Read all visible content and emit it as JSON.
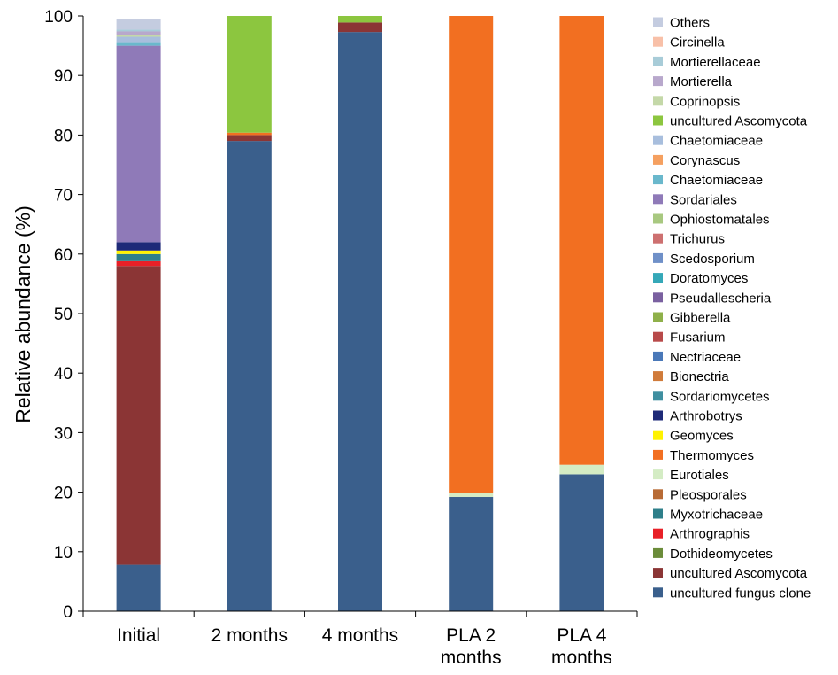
{
  "chart_data": {
    "type": "bar",
    "stacked": true,
    "ylabel": "Relative abundance (%)",
    "xlabel": "",
    "ylim": [
      0,
      100
    ],
    "yticks": [
      0,
      10,
      20,
      30,
      40,
      50,
      60,
      70,
      80,
      90,
      100
    ],
    "grid": false,
    "legend_position": "right",
    "categories": [
      [
        "Initial"
      ],
      [
        "2 months"
      ],
      [
        "4 months"
      ],
      [
        "PLA 2",
        "months"
      ],
      [
        "PLA 4",
        "months"
      ]
    ],
    "series": [
      {
        "name": "uncultured fungus clone",
        "color": "#3a5f8c",
        "values": [
          7.8,
          79.0,
          97.3,
          19.2,
          23.0
        ]
      },
      {
        "name": "uncultured Ascomycota",
        "color": "#8b3535",
        "values": [
          50.2,
          1.0,
          1.6,
          0,
          0
        ]
      },
      {
        "name": "Dothideomycetes",
        "color": "#6b8c3a",
        "values": [
          0,
          0,
          0,
          0,
          0
        ]
      },
      {
        "name": "Arthrographis",
        "color": "#e82027",
        "values": [
          0.8,
          0,
          0,
          0,
          0
        ]
      },
      {
        "name": "Myxotrichaceae",
        "color": "#2e7f8a",
        "values": [
          1.2,
          0,
          0,
          0,
          0
        ]
      },
      {
        "name": "Pleosporales",
        "color": "#b86b35",
        "values": [
          0,
          0,
          0,
          0,
          0
        ]
      },
      {
        "name": "Eurotiales",
        "color": "#d4ecc4",
        "values": [
          0,
          0,
          0,
          0.6,
          1.6
        ]
      },
      {
        "name": "Thermomyces",
        "color": "#f26f21",
        "values": [
          0,
          0.4,
          0,
          80.2,
          75.4
        ]
      },
      {
        "name": "Geomyces",
        "color": "#fff200",
        "values": [
          0.6,
          0,
          0,
          0,
          0
        ]
      },
      {
        "name": "Arthrobotrys",
        "color": "#1e2a78",
        "values": [
          1.4,
          0,
          0,
          0,
          0
        ]
      },
      {
        "name": "Sordariomycetes",
        "color": "#3f8fa0",
        "values": [
          0,
          0,
          0,
          0,
          0
        ]
      },
      {
        "name": "Bionectria",
        "color": "#d07b3a",
        "values": [
          0,
          0,
          0,
          0,
          0
        ]
      },
      {
        "name": "Nectriaceae",
        "color": "#4a78b8",
        "values": [
          0,
          0,
          0,
          0,
          0
        ]
      },
      {
        "name": "Fusarium",
        "color": "#b84a4a",
        "values": [
          0,
          0,
          0,
          0,
          0
        ]
      },
      {
        "name": "Gibberella",
        "color": "#8fb04a",
        "values": [
          0,
          0,
          0,
          0,
          0
        ]
      },
      {
        "name": "Pseudallescheria",
        "color": "#7a60a0",
        "values": [
          0,
          0,
          0,
          0,
          0
        ]
      },
      {
        "name": "Doratomyces",
        "color": "#35a8b8",
        "values": [
          0,
          0,
          0,
          0,
          0
        ]
      },
      {
        "name": "Scedosporium",
        "color": "#6f90c8",
        "values": [
          0,
          0,
          0,
          0,
          0
        ]
      },
      {
        "name": "Trichurus",
        "color": "#cd7070",
        "values": [
          0,
          0,
          0,
          0,
          0
        ]
      },
      {
        "name": "Ophiostomatales",
        "color": "#a8c880",
        "values": [
          0,
          0,
          0,
          0,
          0
        ]
      },
      {
        "name": "Sordariales",
        "color": "#8f7ab8",
        "values": [
          33.0,
          0,
          0,
          0,
          0
        ]
      },
      {
        "name": "Chaetomiaceae",
        "color": "#6ab8cc",
        "values": [
          0.6,
          0,
          0,
          0,
          0
        ]
      },
      {
        "name": "Corynascus",
        "color": "#f5a060",
        "values": [
          0,
          0,
          0,
          0,
          0
        ]
      },
      {
        "name": "Chaetomiaceae",
        "color": "#a8bedd",
        "values": [
          0.9,
          0,
          0,
          0,
          0
        ]
      },
      {
        "name": "uncultured Ascomycota",
        "color": "#8cc63f",
        "values": [
          0,
          19.6,
          1.1,
          0,
          0
        ]
      },
      {
        "name": "Coprinopsis",
        "color": "#c4d8a8",
        "values": [
          0.3,
          0,
          0,
          0,
          0
        ]
      },
      {
        "name": "Mortierella",
        "color": "#b8a8cc",
        "values": [
          0.6,
          0,
          0,
          0,
          0
        ]
      },
      {
        "name": "Mortierellaceae",
        "color": "#a8ccd8",
        "values": [
          0.3,
          0,
          0,
          0,
          0
        ]
      },
      {
        "name": "Circinella",
        "color": "#f8c0a8",
        "values": [
          0,
          0,
          0,
          0,
          0
        ]
      },
      {
        "name": "Others",
        "color": "#c4cce0",
        "values": [
          1.7,
          0,
          0,
          0,
          0
        ]
      }
    ]
  }
}
